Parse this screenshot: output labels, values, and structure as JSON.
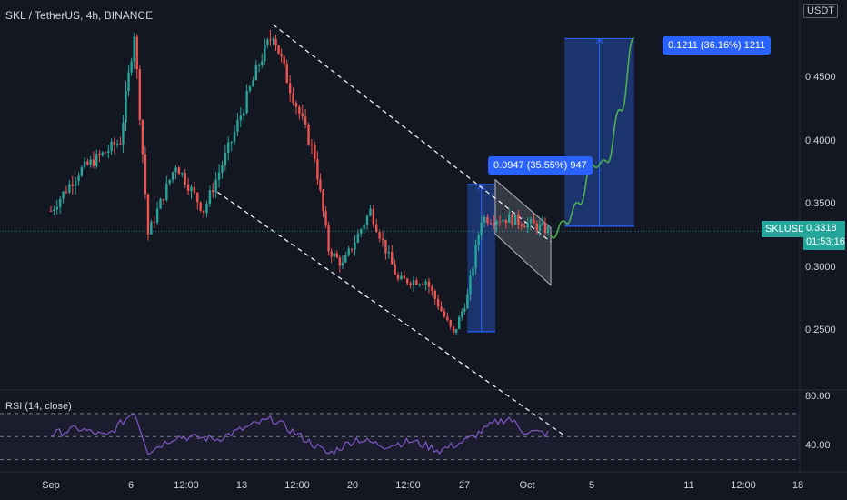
{
  "header": {
    "title": "SKL / TetherUS, 4h, BINANCE",
    "currency": "USDT"
  },
  "price_axis": {
    "ticks": [
      "0.4500",
      "0.4000",
      "0.3500",
      "0.3000",
      "0.2500"
    ]
  },
  "time_axis": {
    "ticks": [
      "Sep",
      "6",
      "12:00",
      "13",
      "12:00",
      "20",
      "12:00",
      "27",
      "Oct",
      "5",
      "11",
      "12:00",
      "18"
    ]
  },
  "current_price": {
    "ticker": "SKLUSDT",
    "price": "0.3318",
    "countdown": "01:53:16",
    "color": "#26a69a"
  },
  "measurements": [
    {
      "label": "0.0947 (35.55%) 947"
    },
    {
      "label": "0.1211 (36.16%) 1211"
    }
  ],
  "rsi": {
    "title": "RSI (14, close)",
    "ticks": [
      "80.00",
      "40.00"
    ],
    "color": "#7e57c2"
  },
  "colors": {
    "up": "#26a69a",
    "down": "#ef5350",
    "measure_fill": "#1e3a7a",
    "measure_line": "#2962ff",
    "projection": "#4caf50"
  },
  "chart_data": {
    "type": "candlestick",
    "symbol": "SKL / TetherUS",
    "interval": "4h",
    "ylim": [
      0.23,
      0.475
    ],
    "x_range": [
      "Sep 1",
      "Oct 18"
    ],
    "anchors": [
      {
        "t": "Sep 1",
        "price": 0.345
      },
      {
        "t": "Sep 3",
        "price": 0.37
      },
      {
        "t": "Sep 6",
        "price": 0.39
      },
      {
        "t": "Sep 7",
        "price": 0.46
      },
      {
        "t": "Sep 8",
        "price": 0.33
      },
      {
        "t": "Sep 10",
        "price": 0.375
      },
      {
        "t": "Sep 12",
        "price": 0.345
      },
      {
        "t": "Sep 14",
        "price": 0.39
      },
      {
        "t": "Sep 16",
        "price": 0.44
      },
      {
        "t": "Sep 17",
        "price": 0.46
      },
      {
        "t": "Sep 18",
        "price": 0.43
      },
      {
        "t": "Sep 20",
        "price": 0.38
      },
      {
        "t": "Sep 21",
        "price": 0.32
      },
      {
        "t": "Sep 22",
        "price": 0.31
      },
      {
        "t": "Sep 24",
        "price": 0.345
      },
      {
        "t": "Sep 26",
        "price": 0.3
      },
      {
        "t": "Sep 28",
        "price": 0.3
      },
      {
        "t": "Sep 30",
        "price": 0.265
      },
      {
        "t": "Oct 1",
        "price": 0.29
      },
      {
        "t": "Oct 2",
        "price": 0.34
      },
      {
        "t": "Oct 4",
        "price": 0.34
      },
      {
        "t": "Oct 6",
        "price": 0.335
      },
      {
        "t": "Oct 7",
        "price": 0.3318
      }
    ],
    "descending_channel": {
      "upper": [
        {
          "t": "Sep 17",
          "price": 0.465
        },
        {
          "t": "Oct 7",
          "price": 0.325
        }
      ],
      "lower": [
        {
          "t": "Sep 13",
          "price": 0.357
        },
        {
          "t": "Oct 8",
          "price": 0.2
        }
      ]
    },
    "flag_channel": {
      "upper": [
        {
          "t": "Oct 3",
          "price": 0.365
        },
        {
          "t": "Oct 7",
          "price": 0.334
        }
      ],
      "lower": [
        {
          "t": "Oct 3",
          "price": 0.33
        },
        {
          "t": "Oct 7",
          "price": 0.297
        }
      ]
    },
    "measure_1": {
      "from": 0.267,
      "to": 0.362,
      "t_start": "Oct 1",
      "t_end": "Oct 3",
      "label": "0.0947 (35.55%) 947"
    },
    "measure_2": {
      "from": 0.335,
      "to": 0.456,
      "t_start": "Oct 8",
      "t_end": "Oct 13",
      "label": "0.1211 (36.16%) 1211"
    },
    "projection_path": [
      {
        "t": "Oct 7",
        "price": 0.329
      },
      {
        "t": "Oct 8",
        "price": 0.338
      },
      {
        "t": "Oct 9",
        "price": 0.35
      },
      {
        "t": "Oct 10",
        "price": 0.375
      },
      {
        "t": "Oct 11",
        "price": 0.377
      },
      {
        "t": "Oct 12",
        "price": 0.41
      },
      {
        "t": "Oct 13",
        "price": 0.456
      }
    ],
    "rsi_ylim": [
      25,
      88
    ],
    "rsi_levels": [
      70,
      50,
      30
    ],
    "rsi_anchors": [
      {
        "t": "Sep 1",
        "value": 52
      },
      {
        "t": "Sep 3",
        "value": 57
      },
      {
        "t": "Sep 5",
        "value": 50
      },
      {
        "t": "Sep 7",
        "value": 72
      },
      {
        "t": "Sep 8",
        "value": 37
      },
      {
        "t": "Sep 10",
        "value": 50
      },
      {
        "t": "Sep 13",
        "value": 48
      },
      {
        "t": "Sep 16",
        "value": 62
      },
      {
        "t": "Sep 17",
        "value": 65
      },
      {
        "t": "Sep 19",
        "value": 50
      },
      {
        "t": "Sep 21",
        "value": 35
      },
      {
        "t": "Sep 23",
        "value": 48
      },
      {
        "t": "Sep 25",
        "value": 42
      },
      {
        "t": "Sep 27",
        "value": 46
      },
      {
        "t": "Sep 29",
        "value": 38
      },
      {
        "t": "Oct 1",
        "value": 47
      },
      {
        "t": "Oct 3",
        "value": 62
      },
      {
        "t": "Oct 4",
        "value": 66
      },
      {
        "t": "Oct 5",
        "value": 55
      },
      {
        "t": "Oct 7",
        "value": 52
      }
    ]
  }
}
